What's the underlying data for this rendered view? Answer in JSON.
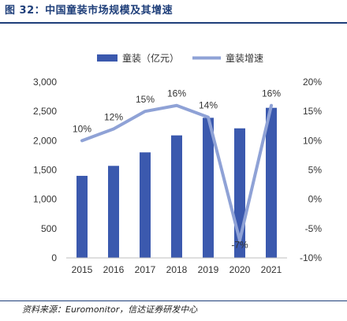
{
  "figure": {
    "title": "图 32：中国童装市场规模及其增速",
    "source": "资料来源：Euromonitor，信达证券研发中心"
  },
  "chart_data": {
    "type": "bar",
    "categories": [
      "2015",
      "2016",
      "2017",
      "2018",
      "2019",
      "2020",
      "2021"
    ],
    "series": [
      {
        "name": "童装（亿元）",
        "type": "bar",
        "axis": "left",
        "color": "#3b59ae",
        "values": [
          1400,
          1570,
          1800,
          2090,
          2390,
          2210,
          2560
        ]
      },
      {
        "name": "童装增速",
        "type": "line",
        "axis": "right",
        "color": "#8fa2d6",
        "values": [
          10,
          12,
          15,
          16,
          14,
          -7,
          16
        ],
        "labels": [
          "10%",
          "12%",
          "15%",
          "16%",
          "14%",
          "-7%",
          "16%"
        ]
      }
    ],
    "y_left": {
      "min": 0,
      "max": 3000,
      "step": 500,
      "ticks": [
        "0",
        "500",
        "1,000",
        "1,500",
        "2,000",
        "2,500",
        "3,000"
      ]
    },
    "y_right": {
      "min": -10,
      "max": 20,
      "step": 5,
      "ticks": [
        "-10%",
        "-5%",
        "0%",
        "5%",
        "10%",
        "15%",
        "20%"
      ]
    },
    "legend": "top",
    "grid": false
  }
}
